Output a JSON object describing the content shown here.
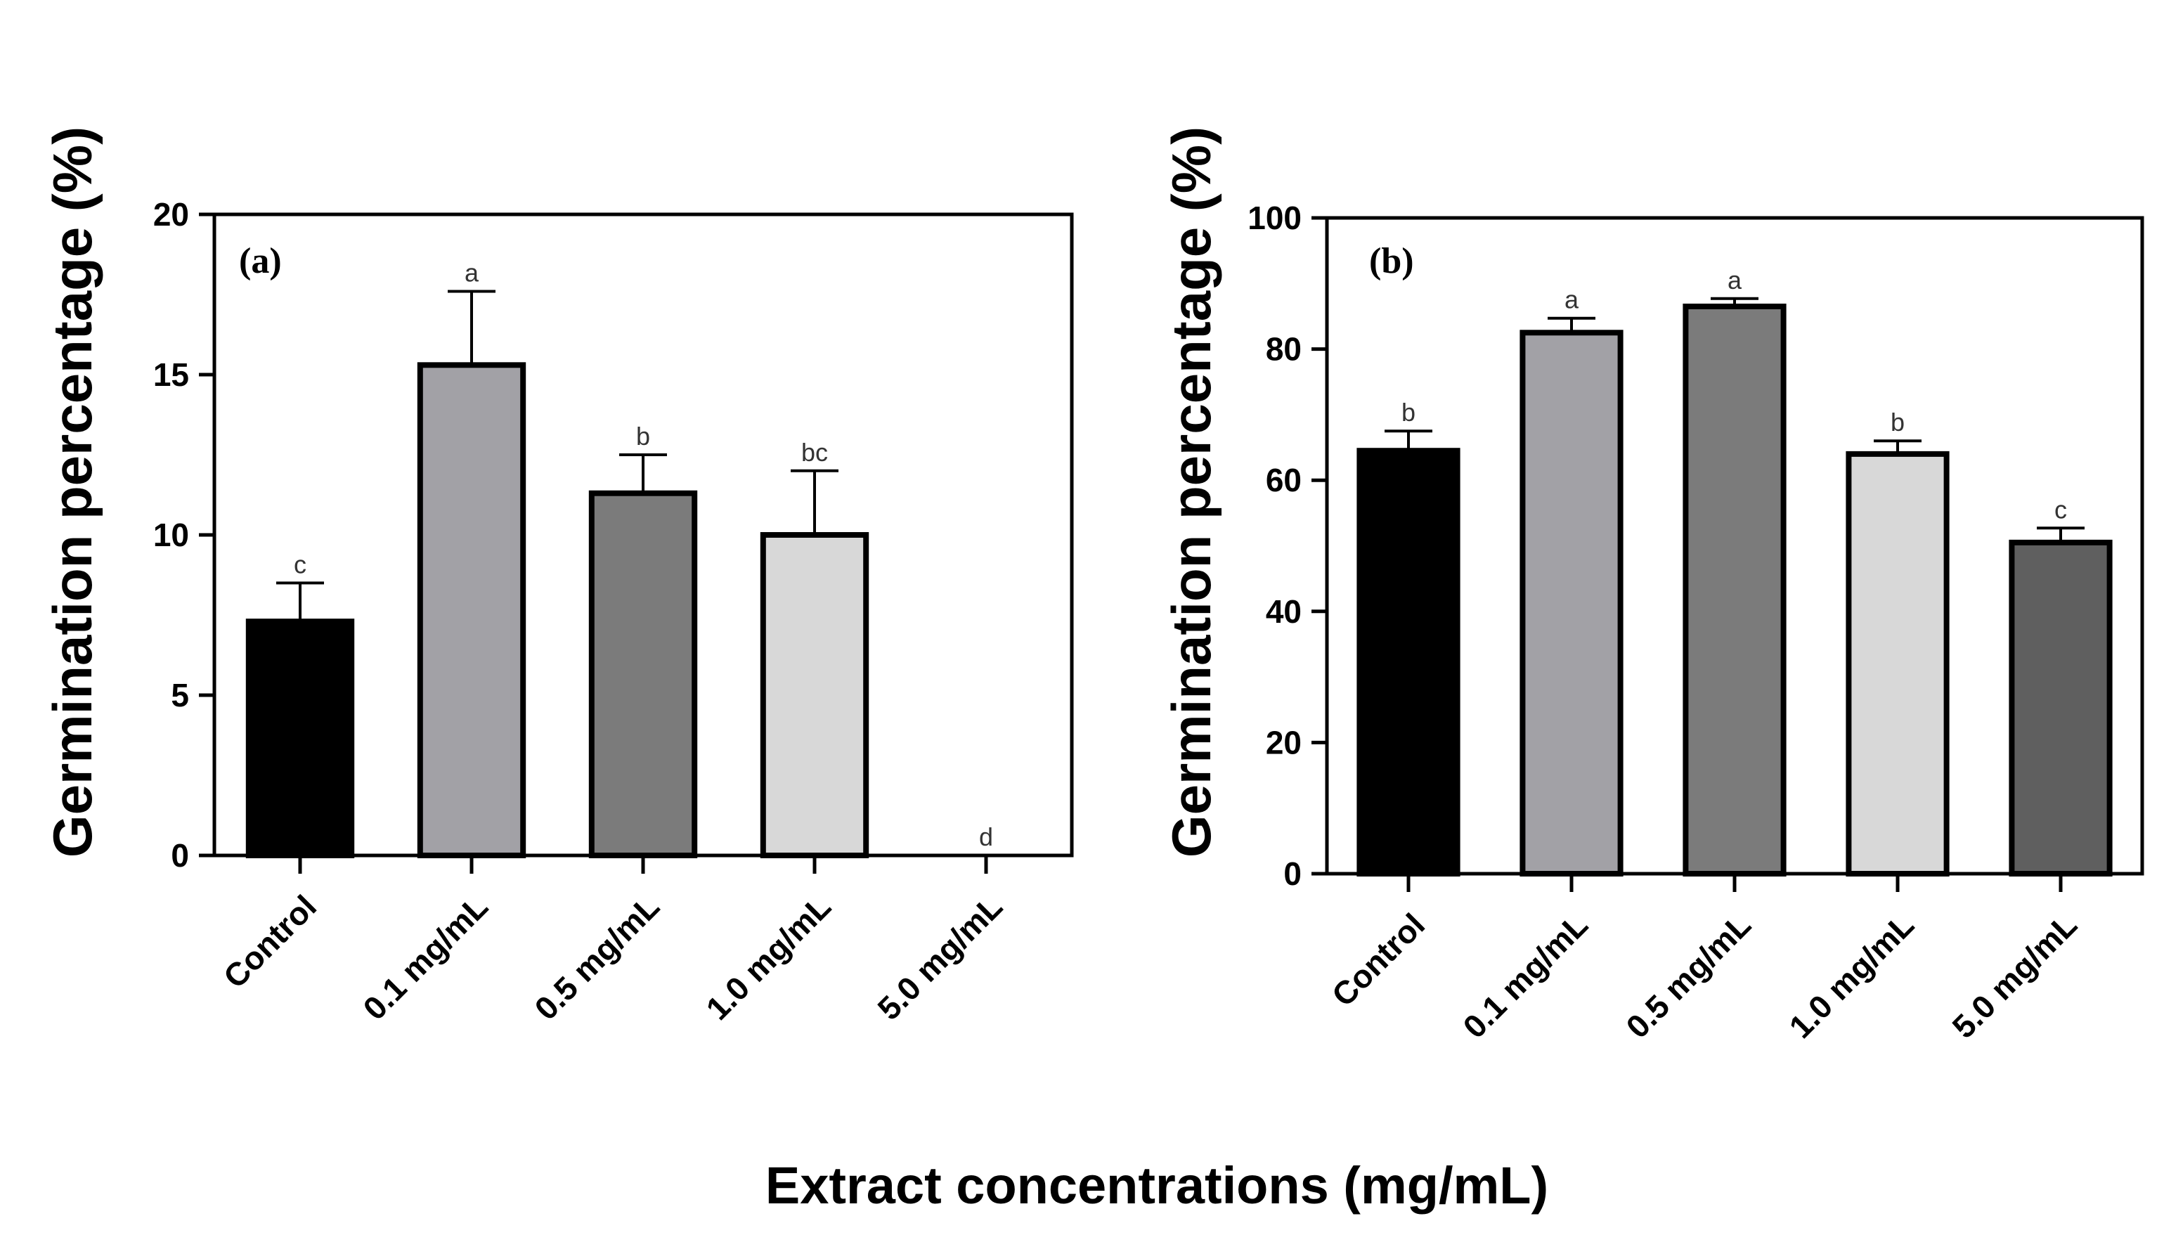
{
  "figure": {
    "shared_xlabel": "Extract concentrations (mg/mL)"
  },
  "chart_data": [
    {
      "type": "bar",
      "panel_label": "(a)",
      "title": "",
      "xlabel": "",
      "ylabel": "Germination percentage (%)",
      "ylim": [
        0,
        20
      ],
      "yticks": [
        0,
        5,
        10,
        15,
        20
      ],
      "categories": [
        "Control",
        "0.1 mg/mL",
        "0.5 mg/mL",
        "1.0 mg/mL",
        "5.0 mg/mL"
      ],
      "values": [
        7.3,
        15.3,
        11.3,
        10.0,
        0
      ],
      "errors": [
        1.2,
        2.3,
        1.2,
        2.0,
        0
      ],
      "significance": [
        "c",
        "a",
        "b",
        "bc",
        "d"
      ],
      "bar_colors": [
        "#000000",
        "#a2a1a6",
        "#7b7b7b",
        "#d8d8d8",
        "#ffffff"
      ],
      "grid": false
    },
    {
      "type": "bar",
      "panel_label": "(b)",
      "title": "",
      "xlabel": "",
      "ylabel": "Germination percentage (%)",
      "ylim": [
        0,
        100
      ],
      "yticks": [
        0,
        20,
        40,
        60,
        80,
        100
      ],
      "categories": [
        "Control",
        "0.1 mg/mL",
        "0.5 mg/mL",
        "1.0 mg/mL",
        "5.0 mg/mL"
      ],
      "values": [
        64.5,
        82.5,
        86.5,
        64.0,
        50.5
      ],
      "errors": [
        3.0,
        2.2,
        1.2,
        2.0,
        2.2
      ],
      "significance": [
        "b",
        "a",
        "a",
        "b",
        "c"
      ],
      "bar_colors": [
        "#000000",
        "#a2a1a6",
        "#7b7b7b",
        "#d8d8d8",
        "#5f5f5f"
      ],
      "grid": false
    }
  ]
}
